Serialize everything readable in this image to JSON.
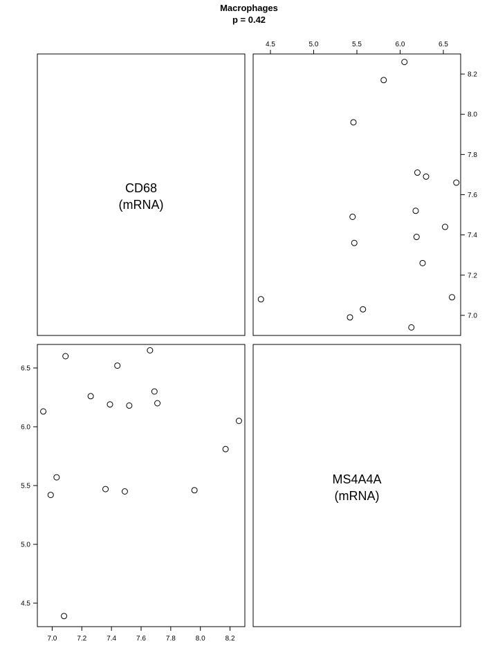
{
  "chart_data": {
    "type": "scatter",
    "title": "Macrophages",
    "subtitle": "p = 0.42",
    "variables": [
      {
        "name": "CD68",
        "unit": "(mRNA)"
      },
      {
        "name": "MS4A4A",
        "unit": "(mRNA)"
      }
    ],
    "grid": false,
    "points": [
      {
        "cd68": 8.26,
        "ms4a4a": 6.05
      },
      {
        "cd68": 8.17,
        "ms4a4a": 5.81
      },
      {
        "cd68": 7.96,
        "ms4a4a": 5.46
      },
      {
        "cd68": 7.71,
        "ms4a4a": 6.2
      },
      {
        "cd68": 7.69,
        "ms4a4a": 6.3
      },
      {
        "cd68": 7.66,
        "ms4a4a": 6.65
      },
      {
        "cd68": 7.52,
        "ms4a4a": 6.18
      },
      {
        "cd68": 7.49,
        "ms4a4a": 5.45
      },
      {
        "cd68": 7.44,
        "ms4a4a": 6.52
      },
      {
        "cd68": 7.39,
        "ms4a4a": 6.19
      },
      {
        "cd68": 7.36,
        "ms4a4a": 5.47
      },
      {
        "cd68": 7.26,
        "ms4a4a": 6.26
      },
      {
        "cd68": 7.08,
        "ms4a4a": 4.39
      },
      {
        "cd68": 7.09,
        "ms4a4a": 6.6
      },
      {
        "cd68": 7.03,
        "ms4a4a": 5.57
      },
      {
        "cd68": 6.99,
        "ms4a4a": 5.42
      },
      {
        "cd68": 6.94,
        "ms4a4a": 6.13
      }
    ],
    "cd68_ticks": [
      7.0,
      7.2,
      7.4,
      7.6,
      7.8,
      8.0,
      8.2
    ],
    "ms4a4a_ticks": [
      4.5,
      5.0,
      5.5,
      6.0,
      6.5
    ],
    "cd68_range": [
      6.9,
      8.3
    ],
    "ms4a4a_range": [
      4.3,
      6.7
    ]
  }
}
